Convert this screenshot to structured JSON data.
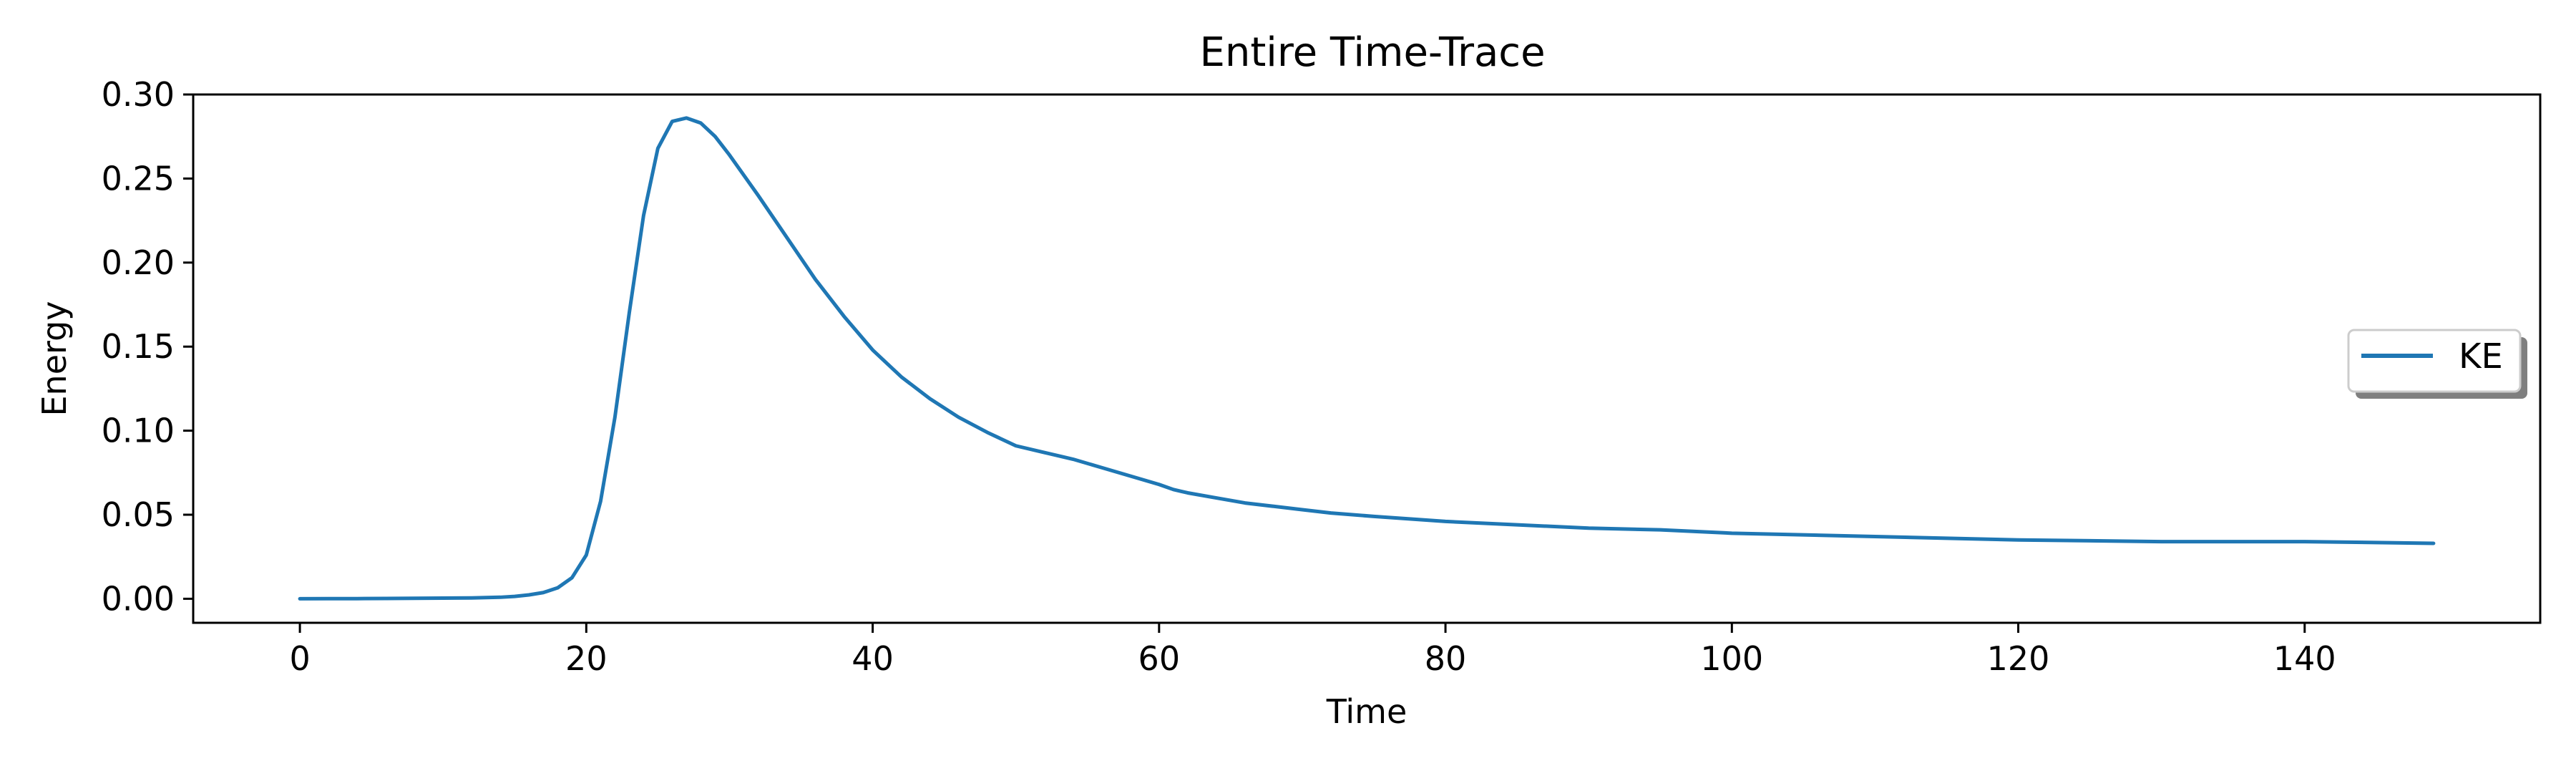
{
  "chart_data": {
    "type": "line",
    "title": "Entire Time-Trace",
    "xlabel": "Time",
    "ylabel": "Energy",
    "xlim": [
      -7.45,
      156.45
    ],
    "ylim": [
      -0.0143,
      0.3
    ],
    "xticks": [
      0,
      20,
      40,
      60,
      80,
      100,
      120,
      140
    ],
    "xtick_labels": [
      "0",
      "20",
      "40",
      "60",
      "80",
      "100",
      "120",
      "140"
    ],
    "yticks": [
      0.0,
      0.05,
      0.1,
      0.15,
      0.2,
      0.25,
      0.3
    ],
    "ytick_labels": [
      "0.00",
      "0.05",
      "0.10",
      "0.15",
      "0.20",
      "0.25",
      "0.30"
    ],
    "grid": false,
    "legend_position": "center-right",
    "series": [
      {
        "name": "KE",
        "color": "#1f77b4",
        "x": [
          0,
          2,
          4,
          6,
          8,
          10,
          12,
          14,
          15,
          16,
          17,
          18,
          19,
          20,
          21,
          22,
          23,
          24,
          25,
          26,
          27,
          28,
          29,
          30,
          32,
          34,
          36,
          38,
          40,
          42,
          44,
          46,
          48,
          50,
          52,
          54,
          56,
          58,
          60,
          61,
          62,
          64,
          66,
          68,
          70,
          72,
          75,
          80,
          85,
          90,
          95,
          100,
          110,
          120,
          130,
          140,
          149
        ],
        "y": [
          0.0,
          0.0001,
          0.0001,
          0.0002,
          0.0003,
          0.0004,
          0.0005,
          0.0009,
          0.0014,
          0.0023,
          0.0037,
          0.0065,
          0.0125,
          0.026,
          0.058,
          0.108,
          0.17,
          0.228,
          0.268,
          0.284,
          0.286,
          0.283,
          0.275,
          0.264,
          0.24,
          0.215,
          0.19,
          0.168,
          0.148,
          0.132,
          0.119,
          0.108,
          0.099,
          0.091,
          0.087,
          0.083,
          0.078,
          0.073,
          0.068,
          0.065,
          0.063,
          0.06,
          0.057,
          0.055,
          0.053,
          0.051,
          0.049,
          0.046,
          0.044,
          0.042,
          0.041,
          0.039,
          0.037,
          0.035,
          0.034,
          0.034,
          0.033
        ]
      }
    ]
  }
}
